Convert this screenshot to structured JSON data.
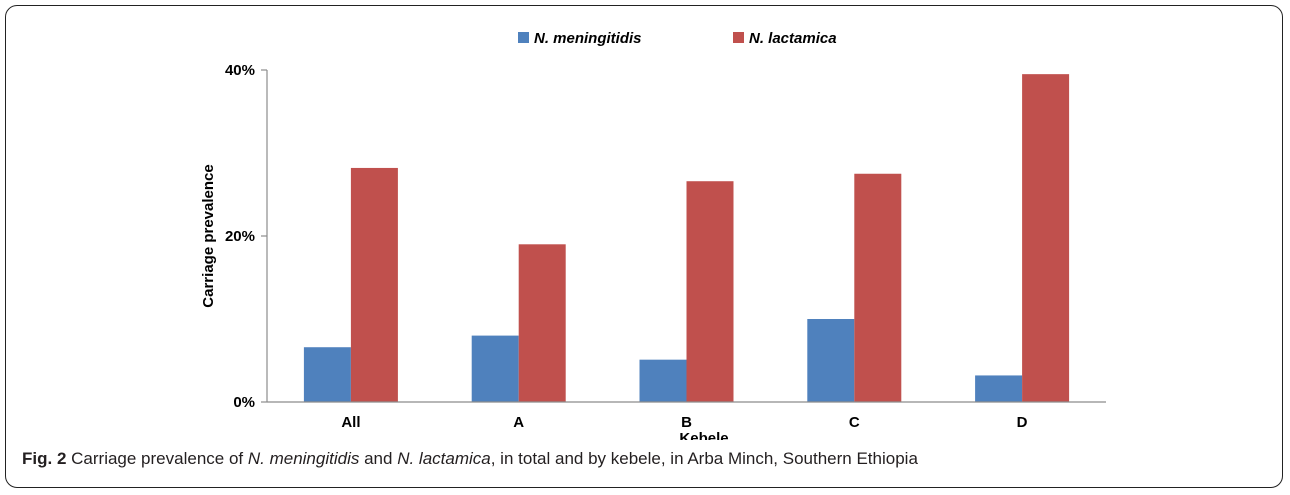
{
  "chart_data": {
    "type": "bar",
    "categories": [
      "All",
      "A",
      "B",
      "C",
      "D"
    ],
    "series": [
      {
        "name": "N. meningitidis",
        "values": [
          6.6,
          8.0,
          5.1,
          10.0,
          3.2
        ],
        "color": "#4f81bd"
      },
      {
        "name": "N. lactamica",
        "values": [
          28.2,
          19.0,
          26.6,
          27.5,
          39.5
        ],
        "color": "#c0504d"
      }
    ],
    "xlabel": "Kebele",
    "ylabel": "Carriage prevalence",
    "ylim": [
      0,
      40
    ],
    "yticks": [
      "0%",
      "20%",
      "40%"
    ],
    "ytick_values": [
      0,
      20,
      40
    ],
    "legend_position": "top",
    "grid": false
  },
  "caption": {
    "label": "Fig. 2",
    "part1": "Carriage prevalence of",
    "species1": "N. meningitidis",
    "part2": "and",
    "species2": "N. lactamica",
    "part3": ", in total and by kebele, in Arba Minch, Southern Ethiopia"
  }
}
